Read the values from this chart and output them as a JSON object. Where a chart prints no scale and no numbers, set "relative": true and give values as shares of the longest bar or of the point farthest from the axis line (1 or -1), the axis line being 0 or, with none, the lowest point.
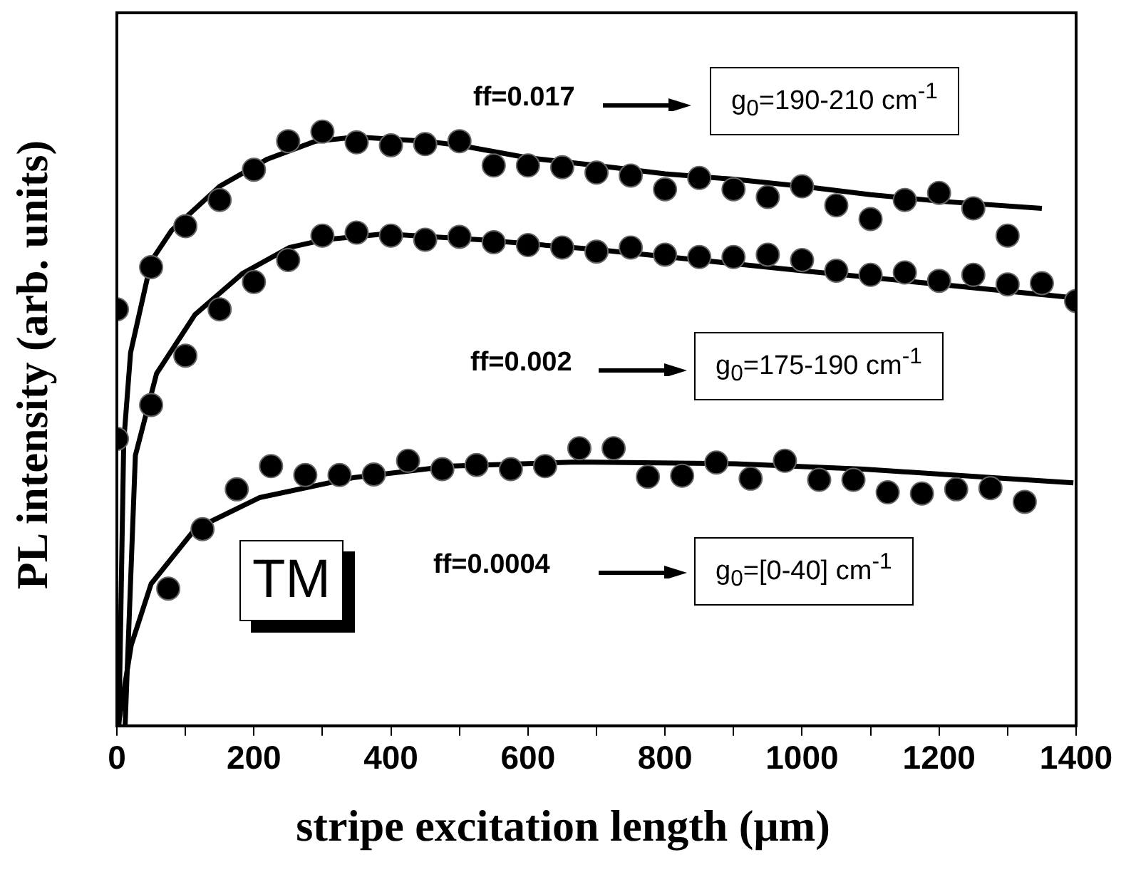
{
  "chart_data": {
    "type": "scatter",
    "xlabel": "stripe excitation length (μm)",
    "ylabel": "PL intensity (arb. units)",
    "xlim": [
      0,
      1400
    ],
    "xticks": [
      0,
      {
        "value": 100,
        "label": null
      },
      200,
      {
        "value": 300,
        "label": null
      },
      400,
      {
        "value": 500,
        "label": null
      },
      600,
      {
        "value": 700,
        "label": null
      },
      800,
      {
        "value": 900,
        "label": null
      },
      1000,
      {
        "value": 1100,
        "label": null
      },
      1200,
      {
        "value": 1300,
        "label": null
      },
      1400
    ],
    "relative": true,
    "grid": false,
    "legend": false,
    "annotations": [
      "ff=0.017",
      "g$_{0}$=190-210 cm$^{-1}$",
      "ff=0.002",
      "g$_{0}$=175-190 cm$^{-1}$",
      "ff=0.0004",
      "g$_{0}$=[0-40] cm$^{-1}$",
      "TM"
    ],
    "series": [
      {
        "marker": "circle",
        "color": "#000000",
        "x": [
          0,
          50,
          100,
          150,
          200,
          250,
          300,
          350,
          400,
          450,
          500,
          550,
          600,
          650,
          700,
          750,
          800,
          850,
          900,
          950,
          1000,
          1050,
          1100,
          1150,
          1200,
          1250,
          1300
        ],
        "values": [
          0.701,
          0.772,
          0.841,
          0.885,
          0.936,
          0.984,
          1,
          0.982,
          0.977,
          0.979,
          0.984,
          0.943,
          0.943,
          0.94,
          0.931,
          0.926,
          0.903,
          0.922,
          0.903,
          0.89,
          0.908,
          0.876,
          0.853,
          0.885,
          0.897,
          0.871,
          0.825
        ]
      },
      {
        "marker": "circle",
        "color": "#000000",
        "x": [
          0,
          50,
          100,
          150,
          200,
          250,
          300,
          350,
          400,
          450,
          500,
          550,
          600,
          650,
          700,
          750,
          800,
          850,
          900,
          950,
          1000,
          1050,
          1100,
          1150,
          1200,
          1250,
          1300,
          1350,
          1400
        ],
        "values": [
          0.483,
          0.54,
          0.623,
          0.701,
          0.747,
          0.784,
          0.825,
          0.83,
          0.825,
          0.818,
          0.823,
          0.814,
          0.809,
          0.805,
          0.798,
          0.805,
          0.793,
          0.789,
          0.789,
          0.793,
          0.784,
          0.766,
          0.759,
          0.763,
          0.749,
          0.759,
          0.743,
          0.745,
          0.715
        ]
      },
      {
        "marker": "circle",
        "color": "#000000",
        "x": [
          75,
          125,
          175,
          225,
          275,
          325,
          375,
          425,
          475,
          525,
          575,
          625,
          675,
          725,
          775,
          825,
          875,
          925,
          975,
          1025,
          1075,
          1125,
          1175,
          1225,
          1275,
          1325
        ],
        "values": [
          0.231,
          0.331,
          0.398,
          0.437,
          0.422,
          0.422,
          0.423,
          0.446,
          0.432,
          0.439,
          0.432,
          0.437,
          0.467,
          0.467,
          0.419,
          0.421,
          0.443,
          0.416,
          0.446,
          0.414,
          0.414,
          0.393,
          0.391,
          0.398,
          0.4,
          0.377
        ]
      },
      {
        "type": "line",
        "color": "#000000",
        "x": [
          3,
          10,
          20,
          50,
          80,
          150,
          220,
          290,
          350,
          450,
          500,
          600,
          700,
          800,
          900,
          1000,
          1100,
          1200,
          1350
        ],
        "values": [
          0,
          0.478,
          0.628,
          0.782,
          0.834,
          0.908,
          0.954,
          0.984,
          0.991,
          0.984,
          0.977,
          0.956,
          0.943,
          0.929,
          0.92,
          0.908,
          0.894,
          0.883,
          0.871
        ]
      },
      {
        "type": "line",
        "color": "#000000",
        "x": [
          12,
          27,
          58,
          114,
          183,
          252,
          302,
          391,
          530,
          697,
          1000,
          1400
        ],
        "values": [
          0,
          0.455,
          0.593,
          0.692,
          0.761,
          0.805,
          0.818,
          0.828,
          0.818,
          0.802,
          0.766,
          0.72
        ]
      },
      {
        "type": "line",
        "color": "#000000",
        "x": [
          2,
          21,
          50,
          114,
          208,
          347,
          487,
          672,
          903,
          1090,
          1275,
          1396
        ],
        "values": [
          0,
          0.136,
          0.239,
          0.331,
          0.384,
          0.418,
          0.437,
          0.444,
          0.441,
          0.432,
          0.418,
          0.409
        ]
      }
    ]
  }
}
